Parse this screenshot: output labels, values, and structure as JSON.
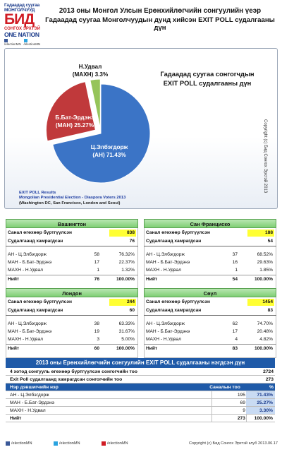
{
  "logo": {
    "line1": "Гадаадад суугаа",
    "line2": "МОНГОЛЧУУД",
    "big": "БИД",
    "line3": "СОНГОХ ЭРХТЭЙ",
    "line4": "ONE NATION",
    "social1": "/electionMN",
    "social2": "/electionMN"
  },
  "header": {
    "title_line1": "2013 оны Монгол Улсын Ерөнхийлөгчийн сонгуулийн үеэр",
    "title_line2": "Гадаадад суугаа Монголчуудын дунд хийсэн EXIT POLL судалгааны дүн"
  },
  "chart_data": {
    "type": "pie",
    "title": "Гадаадад суугаа сонгогчдын EXIT POLL судалгааны дүн",
    "title_line1": "Гадаадад суугаа сонгогчдын",
    "title_line2": "EXIT POLL судалгааны дүн",
    "slices": [
      {
        "label_line1": "Ц.Элбэгдорж",
        "label_line2": "(АН) 71.43%",
        "value": 71.43,
        "color": "#3b74c6"
      },
      {
        "label_line1": "Б.Бат-Эрдэнэ",
        "label_line2": "(МАН) 25.27%",
        "value": 25.27,
        "color": "#c0393b"
      },
      {
        "label_line1": "Н.Удвал",
        "label_line2": "(МАХН) 3.3%",
        "value": 3.3,
        "color": "#96c45a"
      }
    ],
    "note_line1": "EXIT POLL Results",
    "note_line2": "Mongolian Presidential Election - Diaspora Voters 2013",
    "note_line3": "(Washington DC, San Francisco, London and Seoul)",
    "copyright": "Copyright (c) Бид Сонгох Эрхтэй 2013"
  },
  "cities": [
    {
      "name": "Вашингтон",
      "registered_label": "Санал өгөхөөр бүртгүүлсэн",
      "registered": "838",
      "participated_label": "Судалгаанд хамрагдсан",
      "participated": "76",
      "rows": [
        {
          "label": "АН - Ц.Элбэгдорж",
          "count": "58",
          "pct": "76.32%"
        },
        {
          "label": "МАН - Б.Бат-Эрдэнэ",
          "count": "17",
          "pct": "22.37%"
        },
        {
          "label": "МАХН - Н.Удвал",
          "count": "1",
          "pct": "1.32%"
        }
      ],
      "total_label": "Нийт",
      "total_count": "76",
      "total_pct": "100.00%"
    },
    {
      "name": "Сан Франциско",
      "registered_label": "Санал өгөхөөр бүртгүүлсэн",
      "registered": "188",
      "participated_label": "Судалгаанд хамрагдсан",
      "participated": "54",
      "rows": [
        {
          "label": "АН - Ц.Элбэгдорж",
          "count": "37",
          "pct": "68.52%"
        },
        {
          "label": "МАН - Б.Бат-Эрдэнэ",
          "count": "16",
          "pct": "29.63%"
        },
        {
          "label": "МАХН - Н.Удвал",
          "count": "1",
          "pct": "1.85%"
        }
      ],
      "total_label": "Нийт",
      "total_count": "54",
      "total_pct": "100.00%"
    },
    {
      "name": "Лондон",
      "registered_label": "Санал өгөхөөр бүртгүүлсэн",
      "registered": "244",
      "participated_label": "Судалгаанд хамрагдсан",
      "participated": "60",
      "rows": [
        {
          "label": "АН - Ц.Элбэгдорж",
          "count": "38",
          "pct": "63.33%"
        },
        {
          "label": "МАН - Б.Бат-Эрдэнэ",
          "count": "19",
          "pct": "31.67%"
        },
        {
          "label": "МАХН - Н.Удвал",
          "count": "3",
          "pct": "5.00%"
        }
      ],
      "total_label": "Нийт",
      "total_count": "60",
      "total_pct": "100.00%"
    },
    {
      "name": "Сөүл",
      "registered_label": "Санал өгөхөөр бүртгүүлсэн",
      "registered": "1454",
      "participated_label": "Судалгаанд хамрагдсан",
      "participated": "83",
      "rows": [
        {
          "label": "АН - Ц.Элбэгдорж",
          "count": "62",
          "pct": "74.70%"
        },
        {
          "label": "МАН - Б.Бат-Эрдэнэ",
          "count": "17",
          "pct": "20.48%"
        },
        {
          "label": "МАХН - Н.Удвал",
          "count": "4",
          "pct": "4.82%"
        }
      ],
      "total_label": "Нийт",
      "total_count": "83",
      "total_pct": "100.00%"
    }
  ],
  "summary": {
    "title": "2013 оны Ерөнхийлөгчийн сонгуулийн EXIT POLL судалгааны нэгдсэн дүн",
    "registered_label": "4 хотод сонгууль өгөхөөр бүртгүүлсэн сонгогчийн тоо",
    "registered": "2724",
    "participated_label": "Exit Poll судалгаанд хамрагдсан сонгогчийн тоо",
    "participated": "273",
    "col_name": "Нэр дэвшигчийн нэр",
    "col_count": "Саналын тоо",
    "col_pct": "%",
    "rows": [
      {
        "label": "АН - Ц.Элбэгдорж",
        "count": "195",
        "pct": "71.43%"
      },
      {
        "label": "МАН - Б.Бат-Эрдэнэ",
        "count": "69",
        "pct": "25.27%"
      },
      {
        "label": "МАХН - Н.Удвал",
        "count": "9",
        "pct": "3.30%"
      }
    ],
    "total_label": "Нийт",
    "total_count": "273",
    "total_pct": "100.00%"
  },
  "footer": {
    "fb": "/electionMN",
    "tw": "/electionMN",
    "yt": "/electionMN",
    "copyright": "Copyright (c) Бид Сонгох Эрхтэй клуб 2013.06.17"
  }
}
